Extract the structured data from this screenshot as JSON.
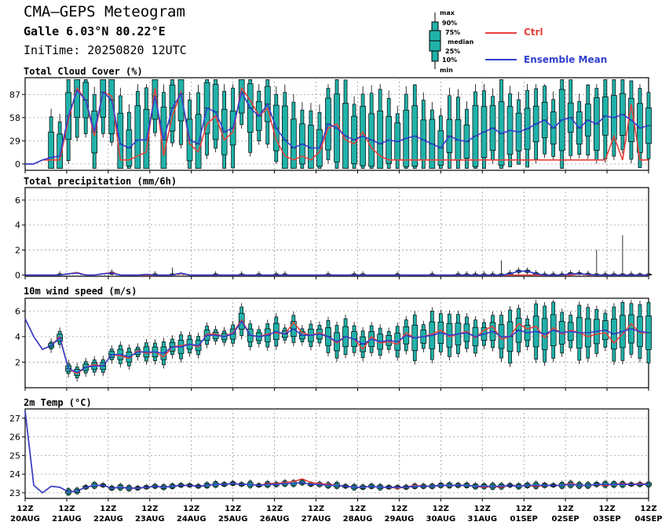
{
  "header": {
    "title": "CMA–GEPS Meteogram",
    "location": "Galle 6.03°N 80.22°E",
    "init_time": "IniTime: 20250820 12UTC"
  },
  "legend": {
    "box_labels": [
      "max",
      "90%",
      "75%",
      "median",
      "25%",
      "10%",
      "min"
    ],
    "ctrl_label": "Ctrl",
    "mean_label": "Ensemble Mean",
    "colors": {
      "ctrl": "#e8413c",
      "mean": "#2f3fd0",
      "box": "#20b2aa",
      "box_edge": "#000000"
    }
  },
  "x_axis": {
    "ticks": [
      {
        "top": "12Z",
        "bottom": "20AUG"
      },
      {
        "top": "12Z",
        "bottom": "21AUG"
      },
      {
        "top": "12Z",
        "bottom": "22AUG"
      },
      {
        "top": "12Z",
        "bottom": "23AUG"
      },
      {
        "top": "12Z",
        "bottom": "24AUG"
      },
      {
        "top": "12Z",
        "bottom": "25AUG"
      },
      {
        "top": "12Z",
        "bottom": "26AUG"
      },
      {
        "top": "12Z",
        "bottom": "27AUG"
      },
      {
        "top": "12Z",
        "bottom": "28AUG"
      },
      {
        "top": "12Z",
        "bottom": "29AUG"
      },
      {
        "top": "12Z",
        "bottom": "30AUG"
      },
      {
        "top": "12Z",
        "bottom": "31AUG"
      },
      {
        "top": "12Z",
        "bottom": "01SEP"
      },
      {
        "top": "12Z",
        "bottom": "02SEP"
      },
      {
        "top": "12Z",
        "bottom": "03SEP"
      },
      {
        "top": "12Z",
        "bottom": "04SEP"
      }
    ],
    "step_hours": 6
  },
  "chart_data": [
    {
      "type": "line",
      "title": "Total Cloud Cover (%)",
      "yticks": [
        0,
        29,
        58,
        87
      ],
      "ylim": [
        -8,
        108
      ],
      "has_boxes": true,
      "series": [
        {
          "name": "Ctrl",
          "values": [
            0,
            0,
            5,
            5,
            5,
            55,
            95,
            80,
            35,
            90,
            85,
            5,
            5,
            10,
            15,
            95,
            10,
            60,
            90,
            25,
            15,
            50,
            60,
            30,
            40,
            95,
            80,
            60,
            70,
            30,
            10,
            5,
            10,
            5,
            15,
            45,
            50,
            30,
            25,
            40,
            20,
            10,
            5,
            5,
            5,
            5,
            5,
            5,
            5,
            5,
            5,
            5,
            5,
            5,
            5,
            5,
            5,
            5,
            5,
            5,
            5,
            5,
            5,
            5,
            5,
            5,
            5,
            5,
            35,
            5,
            75,
            5,
            5
          ]
        },
        {
          "name": "Ensemble Mean",
          "values": [
            0,
            0,
            5,
            8,
            10,
            60,
            92,
            80,
            40,
            90,
            80,
            25,
            20,
            30,
            30,
            85,
            30,
            70,
            88,
            30,
            25,
            70,
            65,
            40,
            45,
            90,
            70,
            60,
            75,
            45,
            30,
            20,
            25,
            20,
            20,
            50,
            45,
            35,
            30,
            35,
            30,
            25,
            30,
            28,
            32,
            35,
            30,
            25,
            20,
            35,
            30,
            28,
            35,
            40,
            45,
            38,
            42,
            40,
            44,
            50,
            55,
            45,
            55,
            58,
            45,
            55,
            50,
            60,
            58,
            62,
            55,
            45,
            48
          ]
        }
      ],
      "boxes_note": "ensemble spread boxes drawn from 21AUG onward"
    },
    {
      "type": "line",
      "title": "Total precipitation (mm/6h)",
      "yticks": [
        0,
        2,
        4,
        6
      ],
      "ylim": [
        -0.1,
        7
      ],
      "has_boxes": true,
      "series": [
        {
          "name": "Ctrl",
          "values": [
            0,
            0,
            0,
            0,
            0,
            0.1,
            0.2,
            0,
            0,
            0.1,
            0.2,
            0,
            0,
            0,
            0,
            0,
            0,
            0,
            0.1,
            0,
            0,
            0,
            0,
            0,
            0,
            0,
            0,
            0,
            0,
            0,
            0,
            0,
            0,
            0,
            0,
            0,
            0,
            0,
            0,
            0,
            0,
            0,
            0,
            0,
            0,
            0,
            0,
            0,
            0,
            0,
            0,
            0,
            0,
            0,
            0,
            0,
            0,
            0,
            0,
            0,
            0,
            0,
            0,
            0,
            0.1,
            0,
            0,
            0,
            0,
            0,
            0,
            0,
            0
          ]
        },
        {
          "name": "Ensemble Mean",
          "values": [
            0,
            0,
            0,
            0,
            0,
            0.1,
            0.15,
            0,
            0,
            0.1,
            0.15,
            0,
            0,
            0,
            0.05,
            0,
            0,
            0,
            0.15,
            0,
            0,
            0,
            0,
            0,
            0,
            0,
            0,
            0,
            0,
            0,
            0,
            0,
            0,
            0,
            0,
            0,
            0,
            0,
            0,
            0,
            0,
            0,
            0,
            0,
            0,
            0,
            0,
            0,
            0,
            0,
            0,
            0,
            0,
            0,
            0,
            0,
            0.1,
            0.3,
            0.3,
            0.1,
            0,
            0,
            0,
            0.1,
            0.1,
            0.05,
            0,
            0,
            0,
            0,
            0,
            0,
            0
          ]
        }
      ]
    },
    {
      "type": "line",
      "title": "10m wind speed (m/s)",
      "yticks": [
        2,
        4,
        6
      ],
      "ylim": [
        0,
        7
      ],
      "has_boxes": true,
      "series": [
        {
          "name": "Ctrl",
          "values": [
            5.4,
            4.0,
            3.0,
            3.3,
            4.0,
            1.5,
            1.1,
            1.6,
            1.8,
            1.7,
            2.6,
            2.5,
            2.3,
            2.9,
            2.7,
            2.8,
            2.4,
            3.2,
            3.3,
            3.4,
            3.2,
            4.2,
            4.2,
            4.0,
            4.3,
            5.3,
            4.1,
            4.0,
            4.2,
            4.3,
            4.2,
            5.1,
            4.3,
            4.1,
            4.3,
            4.0,
            3.5,
            4.0,
            3.8,
            3.0,
            4.0,
            3.5,
            3.6,
            3.4,
            4.3,
            3.9,
            4.0,
            4.2,
            4.5,
            4.0,
            4.2,
            4.4,
            3.9,
            4.5,
            4.8,
            3.8,
            4.0,
            5.0,
            4.6,
            4.8,
            3.9,
            4.7,
            4.2,
            4.5,
            4.3,
            4.0,
            4.2,
            4.3,
            3.5,
            4.2,
            5.0,
            4.3,
            4.3
          ]
        },
        {
          "name": "Ensemble Mean",
          "values": [
            5.4,
            4.0,
            3.0,
            3.3,
            3.9,
            1.5,
            1.2,
            1.6,
            1.7,
            1.7,
            2.6,
            2.6,
            2.4,
            2.8,
            2.8,
            2.8,
            2.7,
            3.2,
            3.2,
            3.4,
            3.3,
            4.1,
            4.1,
            4.0,
            4.2,
            5.2,
            4.1,
            4.0,
            4.1,
            4.4,
            4.2,
            4.6,
            4.1,
            4.1,
            4.2,
            4.0,
            3.6,
            4.0,
            3.8,
            3.4,
            3.8,
            3.6,
            3.7,
            3.6,
            4.1,
            3.9,
            4.0,
            4.1,
            4.3,
            4.1,
            4.2,
            4.3,
            4.0,
            4.2,
            4.4,
            4.0,
            4.0,
            4.5,
            4.3,
            4.4,
            4.2,
            4.5,
            4.3,
            4.4,
            4.3,
            4.3,
            4.4,
            4.5,
            4.2,
            4.4,
            4.6,
            4.4,
            4.3
          ]
        }
      ]
    },
    {
      "type": "line",
      "title": "2m Temp (°C)",
      "yticks": [
        23,
        24,
        25,
        26,
        27
      ],
      "ylim": [
        22.7,
        27.5
      ],
      "has_boxes": true,
      "series": [
        {
          "name": "Ctrl",
          "values": [
            27.4,
            23.4,
            23.0,
            23.35,
            23.3,
            23.05,
            23.1,
            23.3,
            23.4,
            23.4,
            23.25,
            23.3,
            23.25,
            23.25,
            23.3,
            23.35,
            23.3,
            23.35,
            23.4,
            23.4,
            23.35,
            23.4,
            23.45,
            23.45,
            23.5,
            23.45,
            23.45,
            23.4,
            23.5,
            23.5,
            23.55,
            23.6,
            23.75,
            23.55,
            23.5,
            23.45,
            23.4,
            23.35,
            23.3,
            23.3,
            23.35,
            23.3,
            23.3,
            23.25,
            23.3,
            23.4,
            23.35,
            23.35,
            23.4,
            23.4,
            23.4,
            23.4,
            23.35,
            23.3,
            23.35,
            23.3,
            23.4,
            23.35,
            23.4,
            23.35,
            23.4,
            23.4,
            23.4,
            23.5,
            23.4,
            23.4,
            23.45,
            23.4,
            23.45,
            23.5,
            23.45,
            23.5,
            23.45
          ]
        },
        {
          "name": "Ensemble Mean",
          "values": [
            27.4,
            23.4,
            23.0,
            23.35,
            23.3,
            23.05,
            23.1,
            23.3,
            23.4,
            23.4,
            23.25,
            23.3,
            23.25,
            23.25,
            23.3,
            23.35,
            23.3,
            23.35,
            23.4,
            23.4,
            23.35,
            23.4,
            23.45,
            23.45,
            23.5,
            23.45,
            23.45,
            23.4,
            23.45,
            23.45,
            23.5,
            23.5,
            23.55,
            23.45,
            23.45,
            23.4,
            23.4,
            23.35,
            23.3,
            23.3,
            23.35,
            23.3,
            23.3,
            23.3,
            23.3,
            23.35,
            23.35,
            23.35,
            23.4,
            23.4,
            23.4,
            23.4,
            23.35,
            23.35,
            23.35,
            23.35,
            23.4,
            23.35,
            23.4,
            23.4,
            23.4,
            23.4,
            23.4,
            23.45,
            23.4,
            23.4,
            23.45,
            23.45,
            23.45,
            23.45,
            23.45,
            23.45,
            23.45
          ]
        }
      ]
    }
  ]
}
